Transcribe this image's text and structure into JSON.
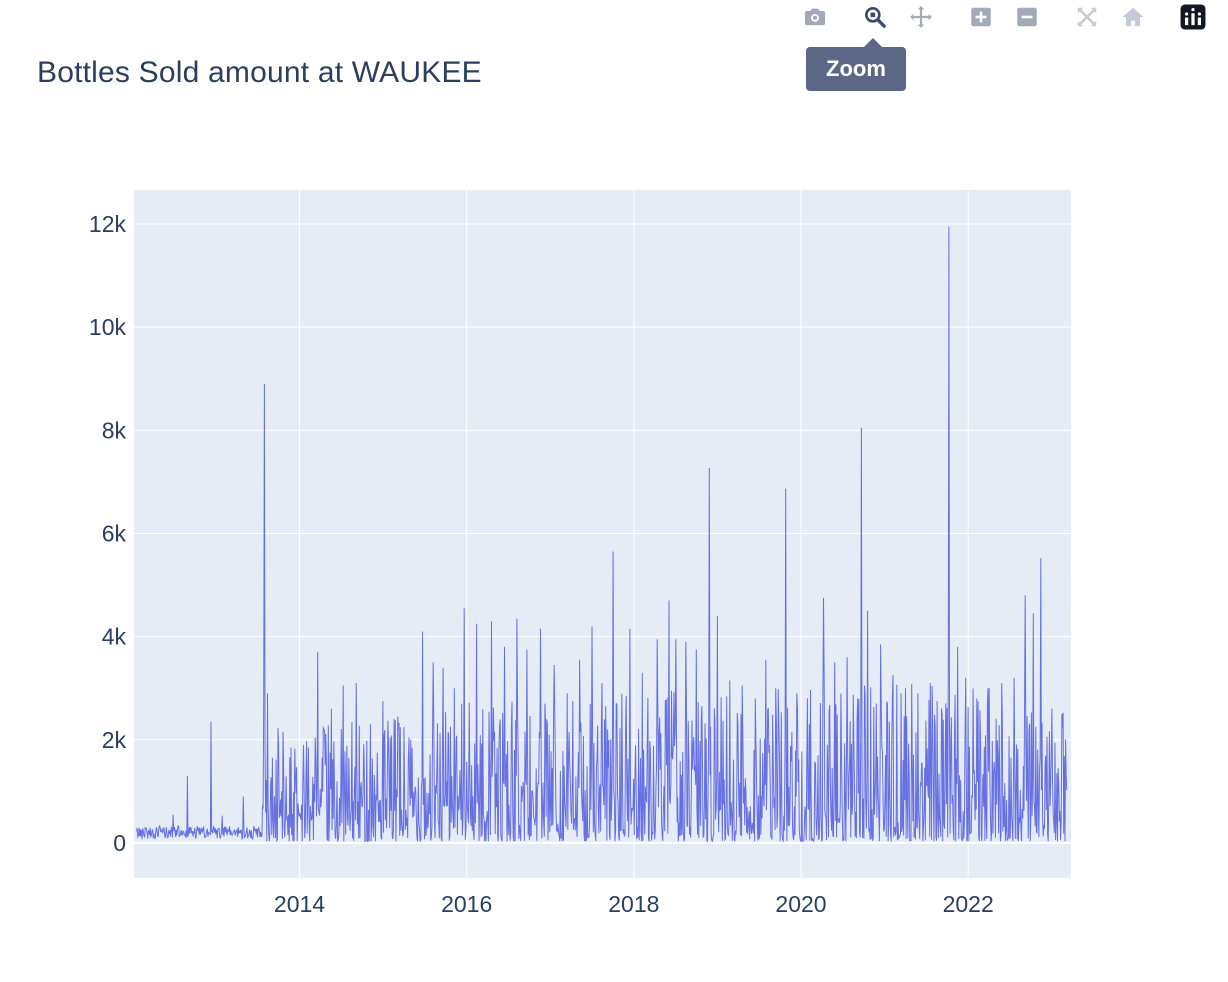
{
  "chart_data": {
    "type": "line",
    "title": "Bottles Sold amount at WAUKEE",
    "xlabel": "",
    "ylabel": "",
    "grid": true,
    "xlim": [
      2012.02,
      2023.23
    ],
    "ylim": [
      -680,
      12660
    ],
    "xticks": [
      {
        "label": "2014",
        "value": 2014
      },
      {
        "label": "2016",
        "value": 2016
      },
      {
        "label": "2018",
        "value": 2018
      },
      {
        "label": "2020",
        "value": 2020
      },
      {
        "label": "2022",
        "value": 2022
      }
    ],
    "yticks": [
      {
        "label": "0",
        "value": 0
      },
      {
        "label": "2k",
        "value": 2000
      },
      {
        "label": "4k",
        "value": 4000
      },
      {
        "label": "6k",
        "value": 6000
      },
      {
        "label": "8k",
        "value": 8000
      },
      {
        "label": "10k",
        "value": 10000
      },
      {
        "label": "12k",
        "value": 12000
      }
    ],
    "peaks": [
      [
        2012.66,
        1300
      ],
      [
        2012.94,
        2350
      ],
      [
        2013.33,
        900
      ],
      [
        2013.58,
        8900
      ],
      [
        2013.62,
        2900
      ],
      [
        2013.75,
        1900
      ],
      [
        2013.9,
        1850
      ],
      [
        2014.05,
        1900
      ],
      [
        2014.22,
        3700
      ],
      [
        2014.38,
        2600
      ],
      [
        2014.52,
        3050
      ],
      [
        2014.68,
        3100
      ],
      [
        2014.85,
        2300
      ],
      [
        2015.0,
        2750
      ],
      [
        2015.18,
        2200
      ],
      [
        2015.3,
        1600
      ],
      [
        2015.47,
        4100
      ],
      [
        2015.6,
        3500
      ],
      [
        2015.72,
        3400
      ],
      [
        2015.85,
        3000
      ],
      [
        2015.97,
        4550
      ],
      [
        2016.12,
        4250
      ],
      [
        2016.3,
        4300
      ],
      [
        2016.45,
        3800
      ],
      [
        2016.6,
        4350
      ],
      [
        2016.72,
        3750
      ],
      [
        2016.88,
        4150
      ],
      [
        2017.05,
        3450
      ],
      [
        2017.2,
        2900
      ],
      [
        2017.35,
        3550
      ],
      [
        2017.5,
        4200
      ],
      [
        2017.62,
        3100
      ],
      [
        2017.75,
        5650
      ],
      [
        2017.95,
        4150
      ],
      [
        2018.1,
        3300
      ],
      [
        2018.28,
        3950
      ],
      [
        2018.42,
        4700
      ],
      [
        2018.5,
        3950
      ],
      [
        2018.62,
        3900
      ],
      [
        2018.75,
        3750
      ],
      [
        2018.9,
        7270
      ],
      [
        2019.0,
        4400
      ],
      [
        2019.15,
        3150
      ],
      [
        2019.3,
        3050
      ],
      [
        2019.45,
        2800
      ],
      [
        2019.58,
        3550
      ],
      [
        2019.7,
        3000
      ],
      [
        2019.82,
        6870
      ],
      [
        2019.95,
        2900
      ],
      [
        2020.1,
        2300
      ],
      [
        2020.27,
        4750
      ],
      [
        2020.4,
        3500
      ],
      [
        2020.55,
        3600
      ],
      [
        2020.72,
        8050
      ],
      [
        2020.8,
        4500
      ],
      [
        2020.95,
        3850
      ],
      [
        2021.1,
        3250
      ],
      [
        2021.25,
        3000
      ],
      [
        2021.4,
        2900
      ],
      [
        2021.55,
        3100
      ],
      [
        2021.77,
        11950
      ],
      [
        2021.87,
        3800
      ],
      [
        2021.97,
        3200
      ],
      [
        2022.1,
        2800
      ],
      [
        2022.25,
        3000
      ],
      [
        2022.4,
        3100
      ],
      [
        2022.55,
        3200
      ],
      [
        2022.68,
        4800
      ],
      [
        2022.78,
        4450
      ],
      [
        2022.87,
        5520
      ],
      [
        2023.0,
        2600
      ],
      [
        2023.12,
        2500
      ]
    ],
    "series_gen": {
      "seed": 42,
      "samples": 1500,
      "domain": [
        2012.05,
        2023.18
      ],
      "quiet_until": 2013.55,
      "quiet_band": [
        70,
        330
      ],
      "quiet_spike_prob": 0.03,
      "quiet_spike_max": 520,
      "baseline_min": 30,
      "skew": 2.1,
      "envelope": [
        [
          2012.05,
          320
        ],
        [
          2013.5,
          320
        ],
        [
          2013.58,
          2200
        ],
        [
          2014.5,
          2300
        ],
        [
          2016,
          2700
        ],
        [
          2018,
          2900
        ],
        [
          2020,
          3000
        ],
        [
          2021.5,
          3100
        ],
        [
          2022.5,
          3000
        ],
        [
          2023.18,
          2500
        ]
      ]
    }
  },
  "modebar": {
    "tooltip": "Zoom",
    "active_button": "zoom",
    "buttons": [
      {
        "id": "download",
        "icon": "camera-icon"
      },
      {
        "id": "zoom",
        "icon": "zoom-icon"
      },
      {
        "id": "pan",
        "icon": "pan-icon"
      },
      {
        "id": "zoom-in",
        "icon": "zoom-in-icon"
      },
      {
        "id": "zoom-out",
        "icon": "zoom-out-icon"
      },
      {
        "id": "autoscale",
        "icon": "autoscale-icon"
      },
      {
        "id": "reset",
        "icon": "home-icon"
      },
      {
        "id": "plotly-logo",
        "icon": "plotly-logo-icon"
      }
    ]
  },
  "colors": {
    "accent_line": "#6670e2",
    "plot_bg": "#e5ecf6",
    "grid_line": "#ffffff",
    "title_text": "#2a3f5f",
    "tick_text": "#2a3f5f",
    "tooltip_bg": "#5b6784",
    "tooltip_text": "#ffffff",
    "icon_default": "#a2aaba",
    "icon_active": "#3a4a68",
    "icon_faint": "#c5cbd6",
    "logo_bg": "#111723"
  }
}
